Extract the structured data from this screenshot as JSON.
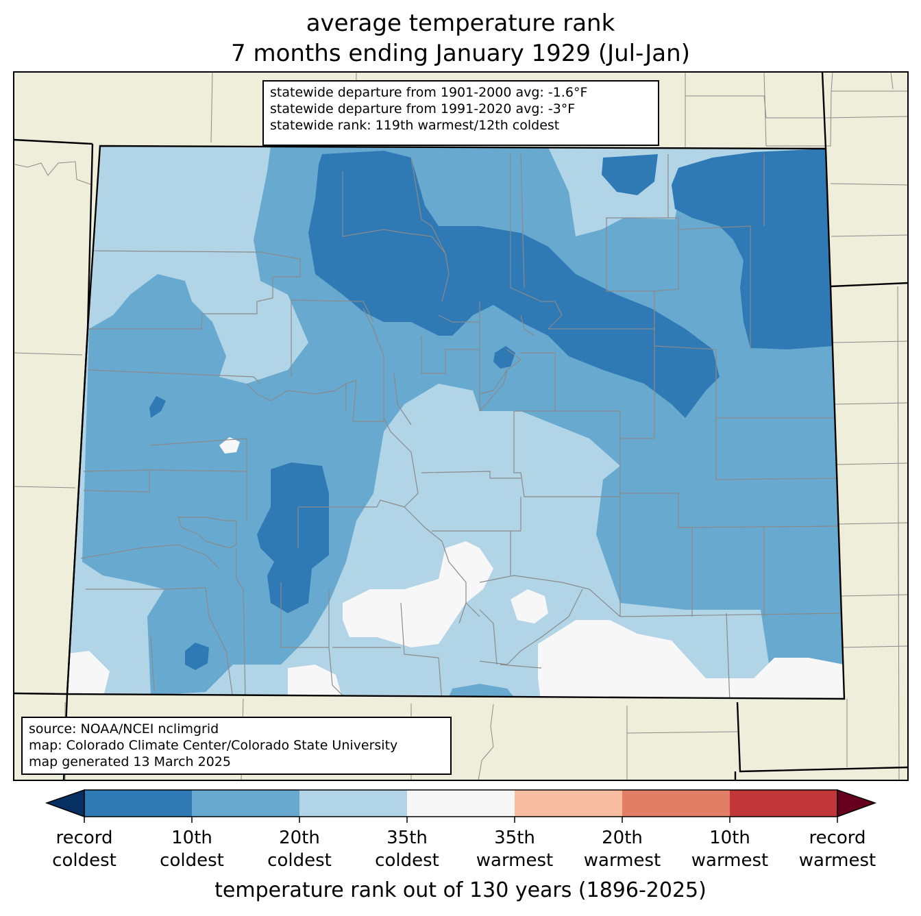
{
  "title": {
    "line1": "average temperature rank",
    "line2": "7 months ending January 1929 (Jul-Jan)"
  },
  "stats_box": {
    "line1": "statewide departure from 1901-2000 avg: -1.6°F",
    "line2": "statewide departure from 1991-2020 avg: -3°F",
    "line3": "statewide rank: 119th warmest/12th coldest"
  },
  "source_box": {
    "line1": "source: NOAA/NCEI nclimgrid",
    "line2": "map: Colorado Climate Center/Colorado State University",
    "line3": "map generated 13 March 2025"
  },
  "colorbar": {
    "title": "temperature rank out of 130 years (1896-2025)",
    "under_color": "#053061",
    "over_color": "#67001f",
    "bins": [
      {
        "color": "#2f79b5"
      },
      {
        "color": "#68a9d0"
      },
      {
        "color": "#b1d4e7"
      },
      {
        "color": "#f7f7f7"
      },
      {
        "color": "#f8bca0"
      },
      {
        "color": "#e27e66"
      },
      {
        "color": "#c13639"
      }
    ],
    "labels": [
      {
        "top": "record",
        "bottom": "coldest"
      },
      {
        "top": "10th",
        "bottom": "coldest"
      },
      {
        "top": "20th",
        "bottom": "coldest"
      },
      {
        "top": "35th",
        "bottom": "coldest"
      },
      {
        "top": "35th",
        "bottom": "warmest"
      },
      {
        "top": "20th",
        "bottom": "warmest"
      },
      {
        "top": "10th",
        "bottom": "warmest"
      },
      {
        "top": "record",
        "bottom": "warmest"
      }
    ]
  },
  "colors": {
    "background_land": "#efeedb",
    "record_cold": "#2f79b5",
    "tenth_cold": "#68a9d0",
    "twentieth_cold": "#b1d4e7",
    "near_normal": "#f7f7f7"
  }
}
